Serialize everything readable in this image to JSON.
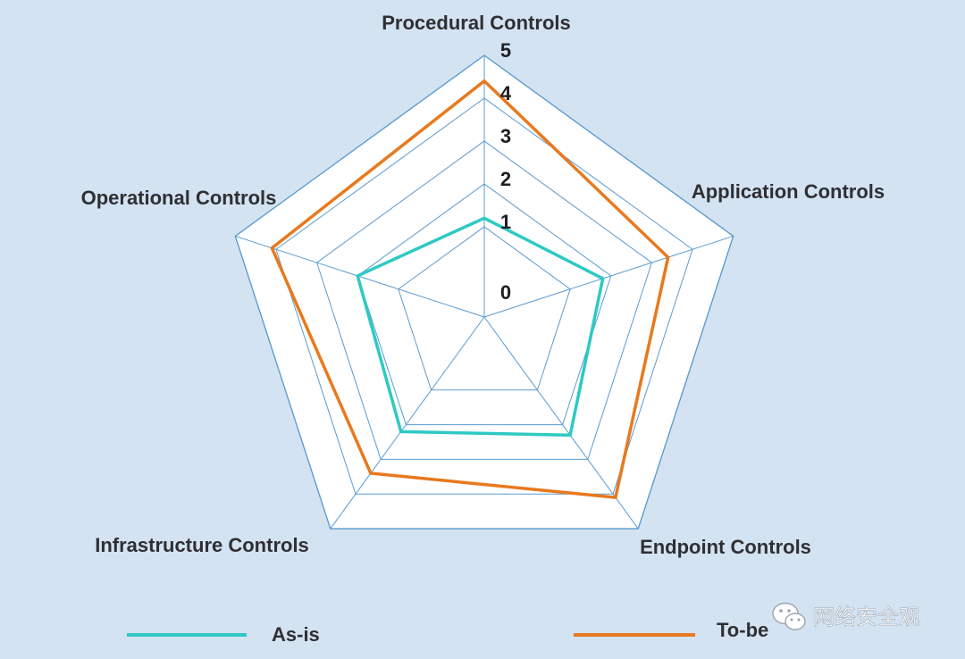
{
  "chart_data": {
    "type": "radar",
    "axes": [
      "Procedural Controls",
      "Application Controls",
      "Endpoint Controls",
      "Infrastructure Controls",
      "Operational Controls"
    ],
    "rlim": [
      0,
      5
    ],
    "ticks": [
      "0",
      "1",
      "2",
      "3",
      "4",
      "5"
    ],
    "series": [
      {
        "name": "As-is",
        "values": [
          1.2,
          1.8,
          2.3,
          2.2,
          2.0
        ],
        "color": "#2ec9c3"
      },
      {
        "name": "To-be",
        "values": [
          4.4,
          3.4,
          4.1,
          3.4,
          4.1
        ],
        "color": "#e8791e"
      }
    ],
    "legend": "bottom",
    "grid": true
  },
  "watermark": {
    "icon": "wechat-icon",
    "text": "网络安全观"
  }
}
